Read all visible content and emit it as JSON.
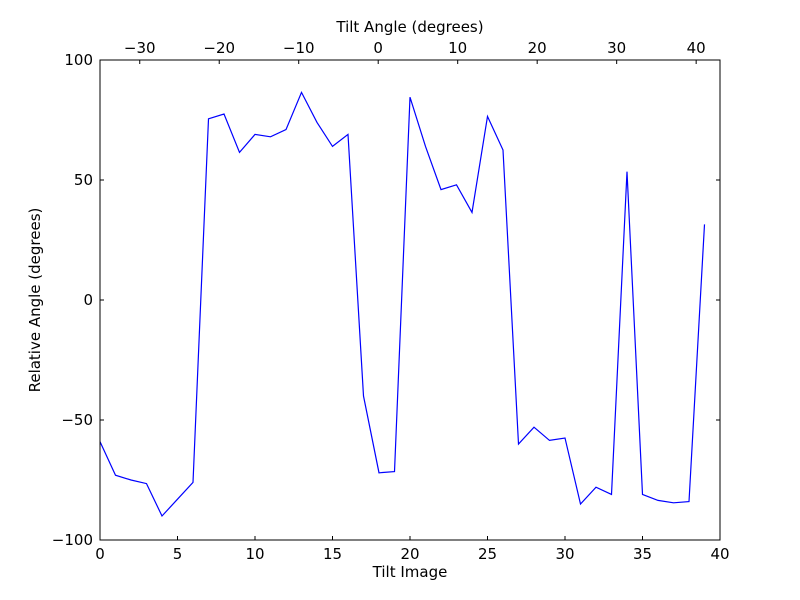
{
  "chart_data": {
    "type": "line",
    "xlabel": "Tilt Image",
    "ylabel": "Relative Angle (degrees)",
    "top_xlabel": "Tilt Angle (degrees)",
    "xlim": [
      0,
      40
    ],
    "ylim": [
      -100,
      100
    ],
    "top_xlim": [
      -35,
      43
    ],
    "x_ticks": [
      0,
      5,
      10,
      15,
      20,
      25,
      30,
      35,
      40
    ],
    "x_tick_labels": [
      "0",
      "5",
      "10",
      "15",
      "20",
      "25",
      "30",
      "35",
      "40"
    ],
    "y_ticks": [
      -100,
      -50,
      0,
      50,
      100
    ],
    "y_tick_labels": [
      "−100",
      "−50",
      "0",
      "50",
      "100"
    ],
    "top_ticks": [
      -30,
      -20,
      -10,
      0,
      10,
      20,
      30,
      40
    ],
    "top_tick_labels": [
      "−30",
      "−20",
      "−10",
      "0",
      "10",
      "20",
      "30",
      "40"
    ],
    "grid": false,
    "line_color": "#0000ff",
    "series": [
      {
        "x": [
          0,
          1,
          2,
          3,
          4,
          5,
          6,
          7,
          8,
          9,
          10,
          11,
          12,
          13,
          14,
          15,
          16,
          17,
          18,
          19,
          20,
          21,
          22,
          23,
          24,
          25,
          26,
          27,
          28,
          29,
          30,
          31,
          32,
          33,
          34,
          35,
          36,
          37,
          38,
          39
        ],
        "values": [
          -59,
          -73,
          -75,
          -76.5,
          -90,
          -83,
          -76,
          75.5,
          77.5,
          61.5,
          69,
          68,
          71,
          86.5,
          74,
          64,
          69,
          -40,
          -72,
          -71.5,
          84.5,
          64,
          46,
          48,
          36.5,
          76.5,
          62.5,
          -60,
          -53,
          -58.5,
          -57.5,
          -85,
          -78,
          -81,
          53.5,
          -81,
          -83.5,
          -84.5,
          -84,
          31.5
        ]
      }
    ]
  }
}
